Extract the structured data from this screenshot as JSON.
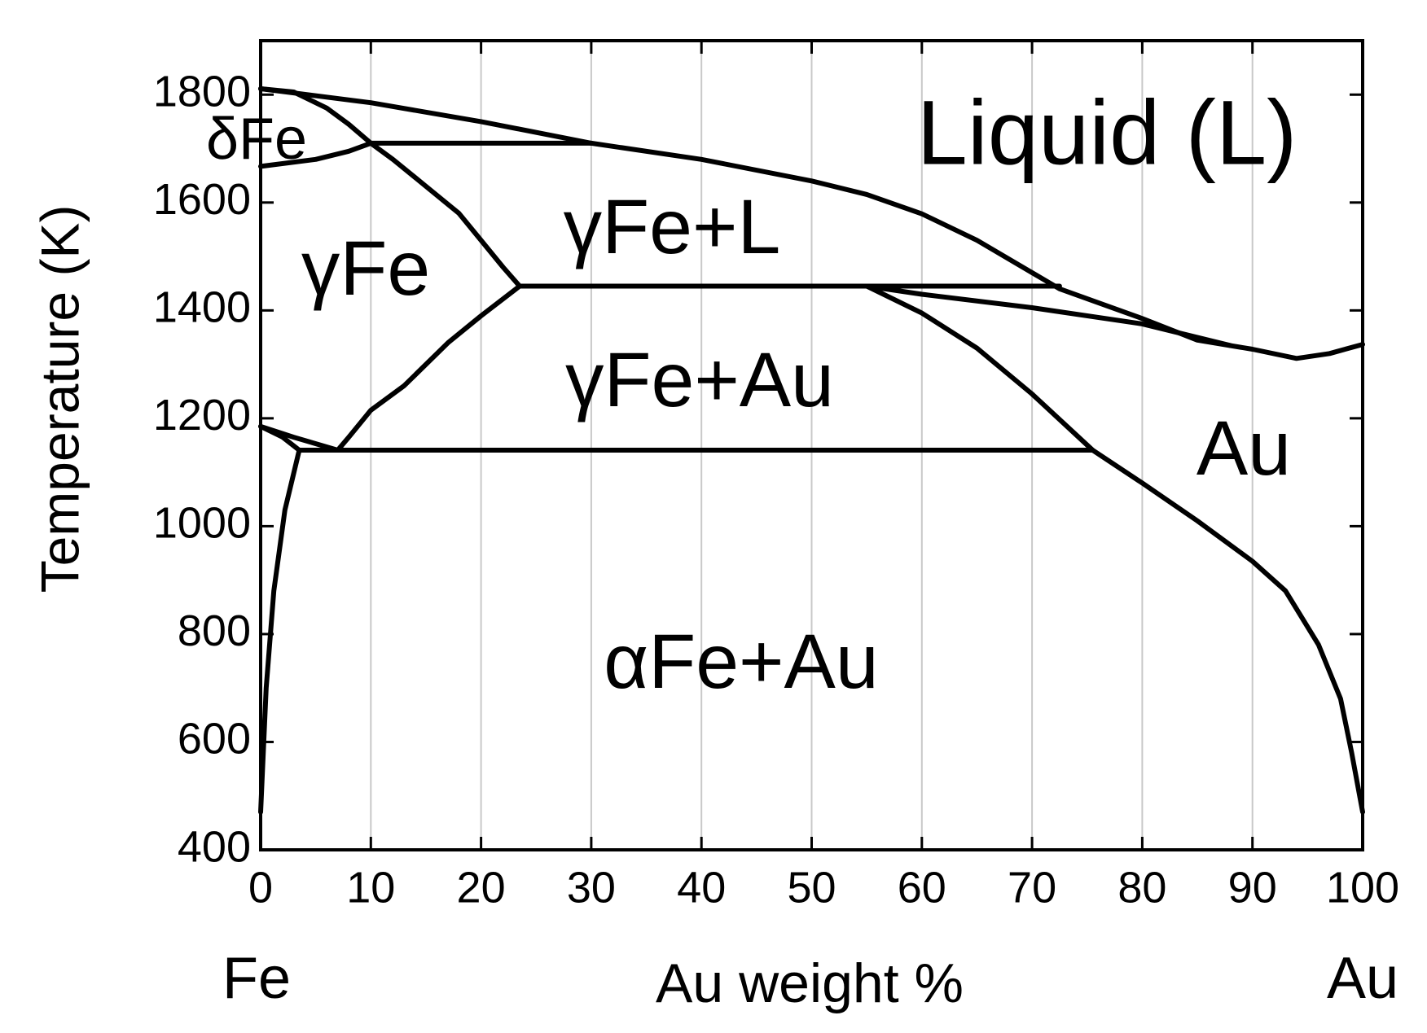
{
  "chart_data": {
    "type": "line",
    "xlabel": "Au weight %",
    "ylabel": "Temperature (K)",
    "xlim": [
      0,
      100
    ],
    "ylim": [
      400,
      1900
    ],
    "xticks": [
      0,
      10,
      20,
      30,
      40,
      50,
      60,
      70,
      80,
      90,
      100
    ],
    "yticks": [
      400,
      600,
      800,
      1000,
      1200,
      1400,
      1600,
      1800
    ],
    "grid": "x",
    "annotations": [
      "Liquid (L)",
      "δFe",
      "γFe",
      "γFe+L",
      "γFe+Au",
      "Au",
      "αFe+Au",
      "Fe",
      "Au"
    ],
    "series": [
      {
        "color": "#000000",
        "x": [
          0,
          10,
          20,
          30,
          40,
          50,
          55,
          60,
          65,
          72.5,
          80,
          85,
          90,
          94,
          97,
          100
        ],
        "values": [
          1811,
          1785,
          1750,
          1710,
          1680,
          1640,
          1615,
          1579,
          1530,
          1440,
          1385,
          1345,
          1328,
          1311,
          1320,
          1337
        ]
      },
      {
        "color": "#000000",
        "x": [
          0,
          3,
          6,
          8,
          10,
          12,
          15,
          18,
          20,
          22,
          23.5
        ],
        "values": [
          1811,
          1805,
          1775,
          1745,
          1710,
          1680,
          1630,
          1580,
          1530,
          1480,
          1445
        ]
      },
      {
        "color": "#000000",
        "x": [
          0,
          5,
          8,
          10
        ],
        "values": [
          1667,
          1680,
          1695,
          1710
        ]
      },
      {
        "color": "#000000",
        "x": [
          10,
          30
        ],
        "values": [
          1710,
          1710
        ]
      },
      {
        "color": "#000000",
        "x": [
          7,
          8,
          10,
          13,
          17,
          20,
          23.5
        ],
        "values": [
          1141,
          1165,
          1215,
          1260,
          1340,
          1390,
          1445
        ]
      },
      {
        "color": "#000000",
        "x": [
          23.5,
          72.5
        ],
        "values": [
          1445,
          1445
        ]
      },
      {
        "color": "#000000",
        "x": [
          55,
          60,
          70,
          80,
          88
        ],
        "values": [
          1445,
          1430,
          1405,
          1375,
          1335
        ]
      },
      {
        "color": "#000000",
        "x": [
          55,
          60,
          65,
          70,
          75.5,
          80,
          85,
          90,
          93,
          96,
          98,
          99,
          100
        ],
        "values": [
          1445,
          1395,
          1330,
          1245,
          1141,
          1080,
          1010,
          935,
          880,
          780,
          680,
          580,
          470
        ]
      },
      {
        "color": "#000000",
        "x": [
          3.5,
          75.5
        ],
        "values": [
          1141,
          1141
        ]
      },
      {
        "color": "#000000",
        "x": [
          0,
          3,
          7
        ],
        "values": [
          1185,
          1165,
          1141
        ]
      },
      {
        "color": "#000000",
        "x": [
          0,
          2,
          3.5
        ],
        "values": [
          1185,
          1165,
          1141
        ]
      },
      {
        "color": "#000000",
        "x": [
          3.5,
          2.2,
          1.2,
          0.5,
          0
        ],
        "values": [
          1141,
          1030,
          880,
          700,
          470
        ]
      }
    ]
  }
}
